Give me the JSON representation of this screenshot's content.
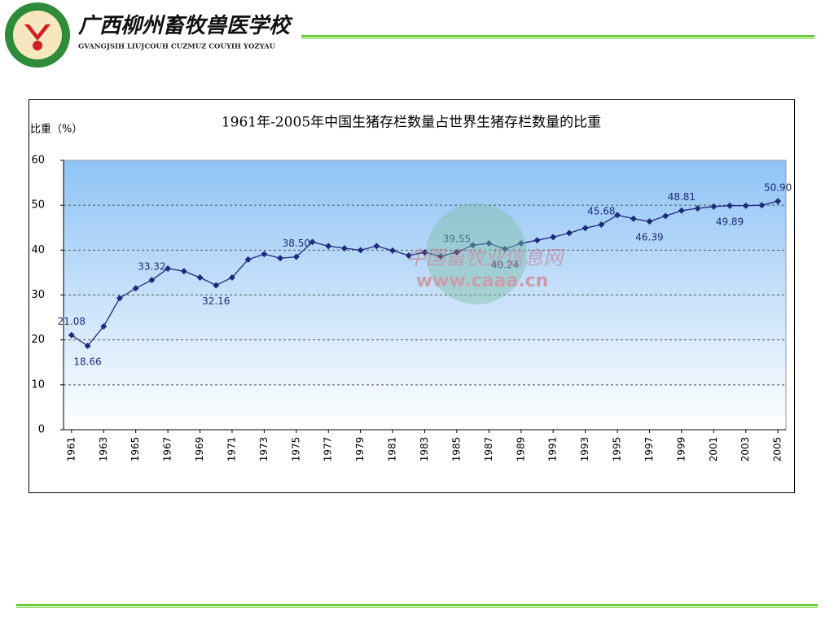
{
  "header": {
    "school_name": "广西柳州畜牧兽医学校",
    "school_name_latin": "GVANGJSIH LIUJCOUH CUZMUZ COUYIH YOZYAU"
  },
  "watermark": {
    "site_name": "中国畜牧业信息网",
    "url": "www.caaa.cn"
  },
  "chart_data": {
    "type": "line",
    "title": "1961年-2005年中国生猪存栏数量占世界生猪存栏数量的比重",
    "y_label": "比重（%）",
    "x": [
      1961,
      1962,
      1963,
      1964,
      1965,
      1966,
      1967,
      1968,
      1969,
      1970,
      1971,
      1972,
      1973,
      1974,
      1975,
      1976,
      1977,
      1978,
      1979,
      1980,
      1981,
      1982,
      1983,
      1984,
      1985,
      1986,
      1987,
      1988,
      1989,
      1990,
      1991,
      1992,
      1993,
      1994,
      1995,
      1996,
      1997,
      1998,
      1999,
      2000,
      2001,
      2002,
      2003,
      2004,
      2005
    ],
    "series": [
      {
        "name": "比重",
        "color": "#1f2a7a",
        "values": [
          21.08,
          18.66,
          23.0,
          29.3,
          31.5,
          33.32,
          35.9,
          35.3,
          33.9,
          32.16,
          33.9,
          37.9,
          39.1,
          38.2,
          38.5,
          41.8,
          40.9,
          40.4,
          40.0,
          40.9,
          39.9,
          38.8,
          39.5,
          38.6,
          39.55,
          41.1,
          41.5,
          40.24,
          41.5,
          42.2,
          42.9,
          43.8,
          44.9,
          45.68,
          47.8,
          47.0,
          46.39,
          47.6,
          48.81,
          49.3,
          49.7,
          49.89,
          49.9,
          50.0,
          50.9
        ],
        "value_labels": [
          "21.08",
          "18.66",
          null,
          null,
          null,
          "33.32",
          null,
          null,
          null,
          "32.16",
          null,
          null,
          null,
          null,
          "38.50",
          null,
          null,
          null,
          null,
          null,
          null,
          null,
          null,
          null,
          "39.55",
          null,
          null,
          "40.24",
          null,
          null,
          null,
          null,
          null,
          "45.68",
          null,
          null,
          "46.39",
          null,
          "48.81",
          null,
          null,
          "49.89",
          null,
          null,
          "50.90"
        ]
      }
    ],
    "xlim": [
      1960.5,
      2005.5
    ],
    "xticks": [
      1961,
      1963,
      1965,
      1967,
      1969,
      1971,
      1973,
      1975,
      1977,
      1979,
      1981,
      1983,
      1985,
      1987,
      1989,
      1991,
      1993,
      1995,
      1997,
      1999,
      2001,
      2003,
      2005
    ],
    "ylim": [
      0,
      60
    ],
    "yticks": [
      0,
      10,
      20,
      30,
      40,
      50,
      60
    ],
    "grid": true
  }
}
